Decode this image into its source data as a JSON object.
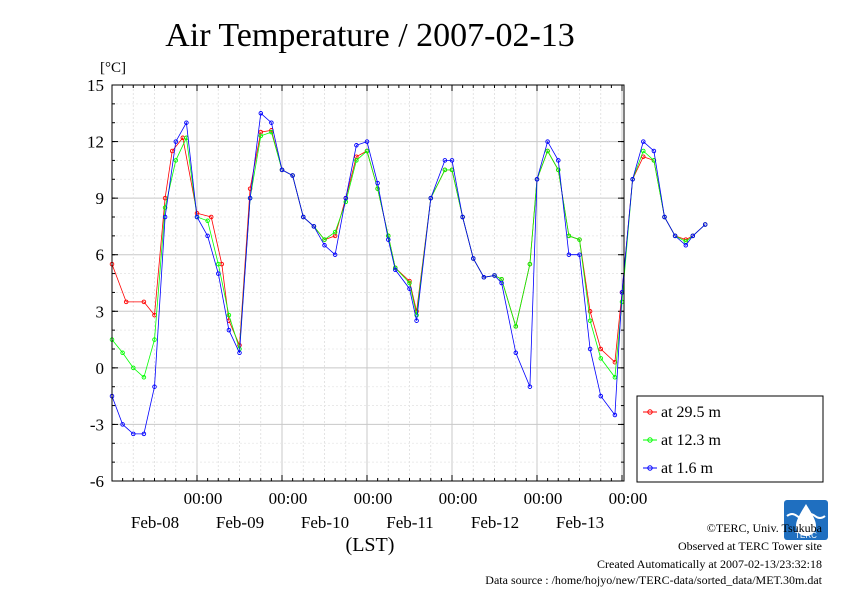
{
  "chart_data": {
    "type": "line",
    "title": "Air Temperature / 2007-02-13",
    "ylabel": "[°C]",
    "xlabel": "(LST)",
    "ylim": [
      -6,
      15
    ],
    "yticks": [
      "15",
      "12",
      "9",
      "6",
      "3",
      "0",
      "-3",
      "-6"
    ],
    "xlim_days": [
      0,
      6
    ],
    "xticks": [
      {
        "time": "00:00",
        "date": "Feb-08"
      },
      {
        "time": "00:00",
        "date": "Feb-09"
      },
      {
        "time": "00:00",
        "date": "Feb-10"
      },
      {
        "time": "00:00",
        "date": "Feb-11"
      },
      {
        "time": "00:00",
        "date": "Feb-12"
      },
      {
        "time": "00:00",
        "date": "Feb-13"
      }
    ],
    "grid": true,
    "legend_position": "right-bottom outside",
    "series": [
      {
        "name": "at 29.5 m",
        "color": "#ff0000",
        "x": [
          "Feb-07 00:00",
          "Feb-07 04:00",
          "Feb-07 09:00",
          "Feb-07 12:00",
          "Feb-07 15:00",
          "Feb-07 17:00",
          "Feb-07 20:00",
          "Feb-08 00:00",
          "Feb-08 04:00",
          "Feb-08 07:00",
          "Feb-08 09:00",
          "Feb-08 12:00",
          "Feb-08 15:00",
          "Feb-08 18:00",
          "Feb-08 21:00",
          "Feb-09 00:00",
          "Feb-09 03:00",
          "Feb-09 06:00",
          "Feb-09 09:00",
          "Feb-09 12:00",
          "Feb-09 15:00",
          "Feb-09 18:00",
          "Feb-09 21:00",
          "Feb-10 00:00",
          "Feb-10 03:00",
          "Feb-10 06:00",
          "Feb-10 08:00",
          "Feb-10 12:00",
          "Feb-10 14:00",
          "Feb-10 18:00",
          "Feb-10 22:00",
          "Feb-11 00:00",
          "Feb-11 03:00",
          "Feb-11 06:00",
          "Feb-11 09:00",
          "Feb-11 12:00",
          "Feb-11 14:00",
          "Feb-11 18:00",
          "Feb-11 22:00",
          "Feb-12 00:00",
          "Feb-12 03:00",
          "Feb-12 06:00",
          "Feb-12 09:00",
          "Feb-12 12:00",
          "Feb-12 15:00",
          "Feb-12 18:00",
          "Feb-12 22:00",
          "Feb-13 00:00",
          "Feb-13 03:00",
          "Feb-13 06:00",
          "Feb-13 09:00",
          "Feb-13 12:00",
          "Feb-13 15:00",
          "Feb-13 18:00",
          "Feb-13 20:00",
          "Feb-13 23:30"
        ],
        "y": [
          5.5,
          3.5,
          3.5,
          2.8,
          9.0,
          11.5,
          12.2,
          8.2,
          8.0,
          5.5,
          2.5,
          1.2,
          9.5,
          12.5,
          12.6,
          10.5,
          10.2,
          8.0,
          7.5,
          6.8,
          7.0,
          9.0,
          11.2,
          11.5,
          9.5,
          7.0,
          5.3,
          4.6,
          3.0,
          9.0,
          10.5,
          10.5,
          8.0,
          5.8,
          4.8,
          4.9,
          4.7,
          2.2,
          5.5,
          10.0,
          11.5,
          10.5,
          7.0,
          6.8,
          3.0,
          1.0,
          0.3,
          4.0,
          10.0,
          11.2,
          11.0,
          8.0,
          7.0,
          6.8,
          7.0,
          7.6
        ]
      },
      {
        "name": "at 12.3 m",
        "color": "#00ff00",
        "x": [
          "Feb-07 00:00",
          "Feb-07 03:00",
          "Feb-07 06:00",
          "Feb-07 09:00",
          "Feb-07 12:00",
          "Feb-07 15:00",
          "Feb-07 18:00",
          "Feb-07 21:00",
          "Feb-08 00:00",
          "Feb-08 03:00",
          "Feb-08 06:00",
          "Feb-08 09:00",
          "Feb-08 12:00",
          "Feb-08 15:00",
          "Feb-08 18:00",
          "Feb-08 21:00",
          "Feb-09 00:00",
          "Feb-09 03:00",
          "Feb-09 06:00",
          "Feb-09 09:00",
          "Feb-09 12:00",
          "Feb-09 15:00",
          "Feb-09 18:00",
          "Feb-09 21:00",
          "Feb-10 00:00",
          "Feb-10 03:00",
          "Feb-10 06:00",
          "Feb-10 08:00",
          "Feb-10 12:00",
          "Feb-10 14:00",
          "Feb-10 18:00",
          "Feb-10 22:00",
          "Feb-11 00:00",
          "Feb-11 03:00",
          "Feb-11 06:00",
          "Feb-11 09:00",
          "Feb-11 12:00",
          "Feb-11 14:00",
          "Feb-11 18:00",
          "Feb-11 22:00",
          "Feb-12 00:00",
          "Feb-12 03:00",
          "Feb-12 06:00",
          "Feb-12 09:00",
          "Feb-12 12:00",
          "Feb-12 15:00",
          "Feb-12 18:00",
          "Feb-12 22:00",
          "Feb-13 00:00",
          "Feb-13 03:00",
          "Feb-13 06:00",
          "Feb-13 09:00",
          "Feb-13 12:00",
          "Feb-13 15:00",
          "Feb-13 18:00",
          "Feb-13 20:00",
          "Feb-13 23:30"
        ],
        "y": [
          1.5,
          0.8,
          0.0,
          -0.5,
          1.5,
          8.5,
          11.0,
          12.2,
          8.0,
          7.8,
          5.5,
          2.8,
          1.0,
          9.0,
          12.3,
          12.5,
          10.5,
          10.2,
          8.0,
          7.5,
          6.8,
          7.2,
          8.8,
          11.0,
          11.5,
          9.5,
          7.0,
          5.3,
          4.5,
          2.8,
          9.0,
          10.5,
          10.5,
          8.0,
          5.8,
          4.8,
          4.9,
          4.7,
          2.2,
          5.5,
          10.0,
          11.5,
          10.5,
          7.0,
          6.8,
          2.5,
          0.5,
          -0.5,
          3.5,
          10.0,
          11.5,
          11.0,
          8.0,
          7.0,
          6.7,
          7.0,
          7.6
        ]
      },
      {
        "name": "at 1.6 m",
        "color": "#0000ff",
        "x": [
          "Feb-07 00:00",
          "Feb-07 03:00",
          "Feb-07 06:00",
          "Feb-07 09:00",
          "Feb-07 12:00",
          "Feb-07 15:00",
          "Feb-07 18:00",
          "Feb-07 21:00",
          "Feb-08 00:00",
          "Feb-08 03:00",
          "Feb-08 06:00",
          "Feb-08 09:00",
          "Feb-08 12:00",
          "Feb-08 15:00",
          "Feb-08 18:00",
          "Feb-08 21:00",
          "Feb-09 00:00",
          "Feb-09 03:00",
          "Feb-09 06:00",
          "Feb-09 09:00",
          "Feb-09 12:00",
          "Feb-09 15:00",
          "Feb-09 18:00",
          "Feb-09 21:00",
          "Feb-10 00:00",
          "Feb-10 03:00",
          "Feb-10 06:00",
          "Feb-10 08:00",
          "Feb-10 12:00",
          "Feb-10 14:00",
          "Feb-10 18:00",
          "Feb-10 22:00",
          "Feb-11 00:00",
          "Feb-11 03:00",
          "Feb-11 06:00",
          "Feb-11 09:00",
          "Feb-11 12:00",
          "Feb-11 14:00",
          "Feb-11 18:00",
          "Feb-11 22:00",
          "Feb-12 00:00",
          "Feb-12 03:00",
          "Feb-12 06:00",
          "Feb-12 09:00",
          "Feb-12 12:00",
          "Feb-12 15:00",
          "Feb-12 18:00",
          "Feb-12 22:00",
          "Feb-13 00:00",
          "Feb-13 03:00",
          "Feb-13 06:00",
          "Feb-13 09:00",
          "Feb-13 12:00",
          "Feb-13 15:00",
          "Feb-13 18:00",
          "Feb-13 20:00",
          "Feb-13 23:30"
        ],
        "y": [
          -1.5,
          -3.0,
          -3.5,
          -3.5,
          -1.0,
          8.0,
          12.0,
          13.0,
          8.0,
          7.0,
          5.0,
          2.0,
          0.8,
          9.0,
          13.5,
          13.0,
          10.5,
          10.2,
          8.0,
          7.5,
          6.5,
          6.0,
          9.0,
          11.8,
          12.0,
          9.8,
          6.8,
          5.2,
          4.2,
          2.5,
          9.0,
          11.0,
          11.0,
          8.0,
          5.8,
          4.8,
          4.9,
          4.5,
          0.8,
          -1.0,
          10.0,
          12.0,
          11.0,
          6.0,
          6.0,
          1.0,
          -1.5,
          -2.5,
          4.0,
          10.0,
          12.0,
          11.5,
          8.0,
          7.0,
          6.5,
          7.0,
          7.6
        ]
      }
    ]
  },
  "footer": {
    "copyright": "©TERC, Univ. Tsukuba",
    "observed": "Observed at TERC Tower site",
    "created": "Created Automatically at 2007-02-13/23:32:18",
    "source": "Data source : /home/hojyo/new/TERC-data/sorted_data/MET.30m.dat",
    "logo_text": "TERC"
  }
}
